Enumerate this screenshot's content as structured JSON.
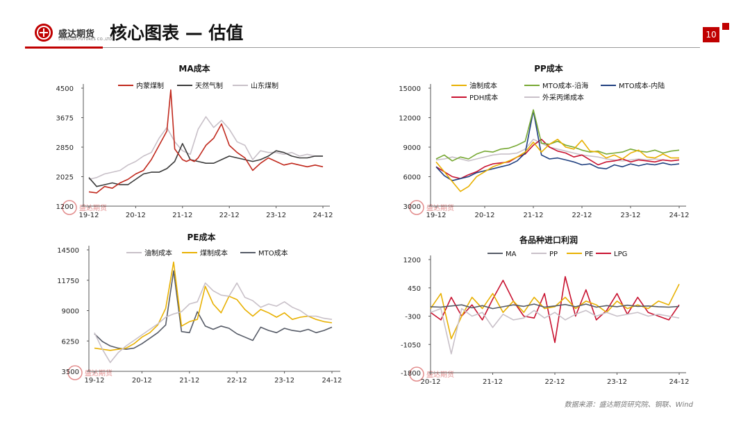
{
  "header": {
    "logo_text": "盛达期货",
    "logo_sub": "SHENGDA FUTURES CO.,LTD.",
    "title": "核心图表 — 估值",
    "page_number": "10"
  },
  "watermark": "盛达期货",
  "source": "数据来源：盛达期货研究院、钢联、Wind",
  "colors": {
    "brand_red": "#c00000"
  },
  "chart_data": [
    {
      "id": "ma",
      "type": "line",
      "title": "MA成本",
      "xticks": [
        "19-12",
        "20-12",
        "21-12",
        "22-12",
        "23-12",
        "24-12"
      ],
      "xrange": [
        0,
        60
      ],
      "yticks": [
        1200,
        2025,
        2850,
        3675,
        4500
      ],
      "ylim": [
        1200,
        4500
      ],
      "legend_position": "top",
      "series": [
        {
          "name": "内蒙煤制",
          "color": "#c0281c",
          "x": [
            0,
            2,
            4,
            6,
            8,
            10,
            12,
            14,
            16,
            17,
            18,
            19,
            20,
            21,
            22,
            23,
            24,
            25,
            26,
            27,
            28,
            30,
            32,
            34,
            36,
            38,
            40,
            42,
            44,
            46,
            48,
            50,
            52,
            54,
            56,
            58,
            60
          ],
          "y": [
            1600,
            1570,
            1750,
            1700,
            1850,
            1950,
            2100,
            2200,
            2500,
            2700,
            2900,
            3100,
            3300,
            4450,
            2800,
            2650,
            2500,
            2450,
            2500,
            2450,
            2550,
            2900,
            3100,
            3500,
            2900,
            2700,
            2550,
            2200,
            2400,
            2550,
            2450,
            2350,
            2400,
            2350,
            2300,
            2350,
            2300
          ]
        },
        {
          "name": "天然气制",
          "color": "#3a3a3a",
          "x": [
            0,
            2,
            4,
            6,
            8,
            10,
            12,
            14,
            16,
            18,
            20,
            22,
            24,
            26,
            28,
            30,
            32,
            34,
            36,
            38,
            40,
            42,
            44,
            46,
            48,
            50,
            52,
            54,
            56,
            58,
            60
          ],
          "y": [
            2000,
            1750,
            1800,
            1850,
            1800,
            1800,
            1950,
            2100,
            2150,
            2150,
            2250,
            2450,
            2950,
            2500,
            2450,
            2400,
            2400,
            2500,
            2600,
            2550,
            2500,
            2450,
            2500,
            2600,
            2750,
            2700,
            2600,
            2550,
            2550,
            2600,
            2600
          ]
        },
        {
          "name": "山东煤制",
          "color": "#c8c0c8",
          "x": [
            0,
            2,
            4,
            6,
            8,
            10,
            12,
            14,
            16,
            18,
            20,
            22,
            24,
            26,
            28,
            30,
            32,
            34,
            36,
            38,
            40,
            42,
            44,
            46,
            48,
            50,
            52,
            54,
            56,
            58,
            60
          ],
          "y": [
            1950,
            2000,
            2100,
            2150,
            2200,
            2350,
            2450,
            2600,
            2700,
            3100,
            3400,
            3000,
            2750,
            2650,
            3350,
            3700,
            3400,
            3600,
            3350,
            3000,
            2900,
            2500,
            2750,
            2700,
            2700,
            2650,
            2700,
            2600,
            2650,
            2600,
            2600
          ]
        }
      ]
    },
    {
      "id": "pp",
      "type": "line",
      "title": "PP成本",
      "xticks": [
        "19-12",
        "20-12",
        "21-12",
        "22-12",
        "23-12",
        "24-12"
      ],
      "xrange": [
        0,
        60
      ],
      "yticks": [
        3000,
        6000,
        9000,
        12000,
        15000
      ],
      "ylim": [
        3000,
        15000
      ],
      "legend_position": "top",
      "series": [
        {
          "name": "油制成本",
          "color": "#e8b000",
          "x": [
            0,
            2,
            4,
            6,
            8,
            10,
            12,
            14,
            16,
            18,
            20,
            22,
            24,
            26,
            28,
            30,
            32,
            34,
            36,
            38,
            40,
            42,
            44,
            46,
            48,
            50,
            52,
            54,
            56,
            58,
            60
          ],
          "y": [
            7500,
            6500,
            5500,
            4500,
            5000,
            6000,
            6500,
            7000,
            7300,
            7600,
            8000,
            8500,
            9500,
            8500,
            9300,
            9800,
            9000,
            8800,
            9700,
            8600,
            8500,
            7900,
            8200,
            7800,
            8400,
            8700,
            8000,
            7900,
            8300,
            7900,
            7900
          ]
        },
        {
          "name": "MTO成本-沿海",
          "color": "#76a832",
          "x": [
            0,
            2,
            4,
            6,
            8,
            10,
            12,
            14,
            16,
            18,
            20,
            22,
            24,
            26,
            28,
            30,
            32,
            34,
            36,
            38,
            40,
            42,
            44,
            46,
            48,
            50,
            52,
            54,
            56,
            58,
            60
          ],
          "y": [
            7800,
            8200,
            7600,
            8000,
            7800,
            8300,
            8600,
            8500,
            8800,
            8900,
            9200,
            9600,
            12800,
            9400,
            9300,
            9600,
            9200,
            9000,
            8700,
            8500,
            8600,
            8300,
            8400,
            8500,
            8800,
            8600,
            8500,
            8700,
            8400,
            8600,
            8700
          ]
        },
        {
          "name": "MTO成本-内陆",
          "color": "#1f3f7f",
          "x": [
            0,
            2,
            4,
            6,
            8,
            10,
            12,
            14,
            16,
            18,
            20,
            22,
            24,
            26,
            28,
            30,
            32,
            34,
            36,
            38,
            40,
            42,
            44,
            46,
            48,
            50,
            52,
            54,
            56,
            58,
            60
          ],
          "y": [
            7000,
            6100,
            5600,
            5800,
            6000,
            6400,
            6600,
            6800,
            7000,
            7200,
            7600,
            8400,
            12700,
            8200,
            7800,
            7900,
            7700,
            7500,
            7200,
            7300,
            6900,
            6800,
            7200,
            7000,
            7300,
            7100,
            7300,
            7200,
            7400,
            7200,
            7300
          ]
        },
        {
          "name": "PDH成本",
          "color": "#c8102e",
          "x": [
            0,
            2,
            4,
            6,
            8,
            10,
            12,
            14,
            16,
            18,
            20,
            22,
            24,
            26,
            28,
            30,
            32,
            34,
            36,
            38,
            40,
            42,
            44,
            46,
            48,
            50,
            52,
            54,
            56,
            58,
            60
          ],
          "y": [
            7000,
            6500,
            6000,
            5800,
            6200,
            6500,
            7000,
            7300,
            7400,
            7500,
            8000,
            8300,
            9200,
            9800,
            9000,
            8600,
            8400,
            8000,
            8200,
            7700,
            7200,
            7500,
            7600,
            7800,
            7500,
            7700,
            7600,
            7500,
            7700,
            7600,
            7700
          ]
        },
        {
          "name": "外采丙烯成本",
          "color": "#c8c0c8",
          "x": [
            0,
            2,
            4,
            6,
            8,
            10,
            12,
            14,
            16,
            18,
            20,
            22,
            24,
            26,
            28,
            30,
            32,
            34,
            36,
            38,
            40,
            42,
            44,
            46,
            48,
            50,
            52,
            54,
            56,
            58,
            60
          ],
          "y": [
            7700,
            7800,
            8000,
            7800,
            7600,
            7800,
            8000,
            8200,
            8300,
            8300,
            8400,
            8800,
            9800,
            9400,
            9000,
            8800,
            8600,
            8400,
            8200,
            8100,
            8000,
            7800,
            7700,
            7600,
            7700,
            7800,
            7700,
            7800,
            7700,
            7600,
            7700
          ]
        }
      ]
    },
    {
      "id": "pe",
      "type": "line",
      "title": "PE成本",
      "xticks": [
        "19-12",
        "20-12",
        "21-12",
        "22-12",
        "23-12",
        "24-12"
      ],
      "xrange": [
        0,
        60
      ],
      "yticks": [
        3500,
        6250,
        9000,
        11750,
        14500
      ],
      "ylim": [
        3500,
        14500
      ],
      "legend_position": "top",
      "series": [
        {
          "name": "油制成本",
          "color": "#c8c0c8",
          "x": [
            0,
            2,
            4,
            6,
            8,
            10,
            12,
            14,
            16,
            18,
            20,
            22,
            24,
            26,
            28,
            30,
            32,
            34,
            36,
            38,
            40,
            42,
            44,
            46,
            48,
            50,
            52,
            54,
            56,
            58,
            60
          ],
          "y": [
            7000,
            5500,
            4300,
            5200,
            5800,
            6300,
            6800,
            7300,
            7800,
            8400,
            8700,
            8900,
            9600,
            9800,
            11500,
            10800,
            10400,
            10300,
            11500,
            10200,
            9900,
            9300,
            9600,
            9400,
            9800,
            9300,
            9000,
            8500,
            8500,
            8300,
            8200
          ]
        },
        {
          "name": "煤制成本",
          "color": "#e8b000",
          "x": [
            0,
            2,
            4,
            6,
            8,
            10,
            12,
            14,
            16,
            18,
            20,
            22,
            24,
            26,
            28,
            30,
            32,
            34,
            36,
            38,
            40,
            42,
            44,
            46,
            48,
            50,
            52,
            54,
            56,
            58,
            60
          ],
          "y": [
            5600,
            5500,
            5400,
            5500,
            5600,
            6000,
            6600,
            7000,
            7700,
            9200,
            13400,
            7600,
            8000,
            8200,
            11200,
            9600,
            8800,
            10300,
            10000,
            9100,
            8500,
            9100,
            8800,
            8400,
            8800,
            8200,
            8400,
            8500,
            8200,
            8000,
            7900
          ]
        },
        {
          "name": "MTO成本",
          "color": "#555a66",
          "x": [
            0,
            2,
            4,
            6,
            8,
            10,
            12,
            14,
            16,
            18,
            20,
            22,
            24,
            26,
            28,
            30,
            32,
            34,
            36,
            38,
            40,
            42,
            44,
            46,
            48,
            50,
            52,
            54,
            56,
            58,
            60
          ],
          "y": [
            6900,
            6200,
            5800,
            5600,
            5500,
            5600,
            6000,
            6500,
            7000,
            7700,
            12600,
            7100,
            7000,
            8900,
            7600,
            7300,
            7600,
            7400,
            6900,
            6600,
            6300,
            7500,
            7200,
            7000,
            7400,
            7200,
            7100,
            7300,
            7000,
            7200,
            7500
          ]
        }
      ]
    },
    {
      "id": "import_profit",
      "type": "line",
      "title": "各品种进口利润",
      "xticks": [
        "20-12",
        "21-12",
        "22-12",
        "23-12",
        "24-12"
      ],
      "xrange": [
        0,
        48
      ],
      "yticks": [
        -1800,
        -1050,
        -300,
        450,
        1200
      ],
      "ylim": [
        -1800,
        1200
      ],
      "legend_position": "top",
      "series": [
        {
          "name": "MA",
          "color": "#555a66",
          "x": [
            0,
            2,
            4,
            6,
            8,
            10,
            12,
            14,
            16,
            18,
            20,
            22,
            24,
            26,
            28,
            30,
            32,
            34,
            36,
            38,
            40,
            42,
            44,
            46,
            48
          ],
          "y": [
            -50,
            -60,
            -30,
            0,
            -80,
            -20,
            -100,
            -50,
            0,
            -40,
            20,
            -60,
            -30,
            10,
            -50,
            20,
            -60,
            -20,
            -50,
            -10,
            -40,
            -30,
            -50,
            -60,
            -40
          ]
        },
        {
          "name": "PP",
          "color": "#c8c0c8",
          "x": [
            0,
            2,
            4,
            6,
            8,
            10,
            12,
            14,
            16,
            18,
            20,
            22,
            24,
            26,
            28,
            30,
            32,
            34,
            36,
            38,
            40,
            42,
            44,
            46,
            48
          ],
          "y": [
            -200,
            -100,
            -1300,
            -100,
            -300,
            -200,
            -600,
            -250,
            -400,
            -350,
            -150,
            -350,
            -200,
            -400,
            -250,
            -150,
            -300,
            -200,
            -300,
            -250,
            -200,
            -300,
            -250,
            -300,
            -350
          ]
        },
        {
          "name": "PE",
          "color": "#e8b000",
          "x": [
            0,
            2,
            4,
            6,
            8,
            10,
            12,
            14,
            16,
            18,
            20,
            22,
            24,
            26,
            28,
            30,
            32,
            34,
            36,
            38,
            40,
            42,
            44,
            46,
            48
          ],
          "y": [
            -100,
            300,
            -900,
            -300,
            200,
            -100,
            300,
            -200,
            100,
            -200,
            200,
            -100,
            -50,
            200,
            -100,
            100,
            0,
            -200,
            100,
            -100,
            0,
            -100,
            100,
            0,
            550
          ]
        },
        {
          "name": "LPG",
          "color": "#c8102e",
          "x": [
            0,
            2,
            4,
            6,
            8,
            10,
            12,
            14,
            16,
            18,
            20,
            22,
            24,
            26,
            28,
            30,
            32,
            34,
            36,
            38,
            40,
            42,
            44,
            46,
            48
          ],
          "y": [
            -200,
            -400,
            200,
            -300,
            0,
            -400,
            150,
            650,
            100,
            -300,
            -350,
            300,
            -1000,
            750,
            -300,
            400,
            -400,
            -150,
            300,
            -250,
            200,
            -200,
            -300,
            -400,
            0
          ]
        }
      ]
    }
  ]
}
